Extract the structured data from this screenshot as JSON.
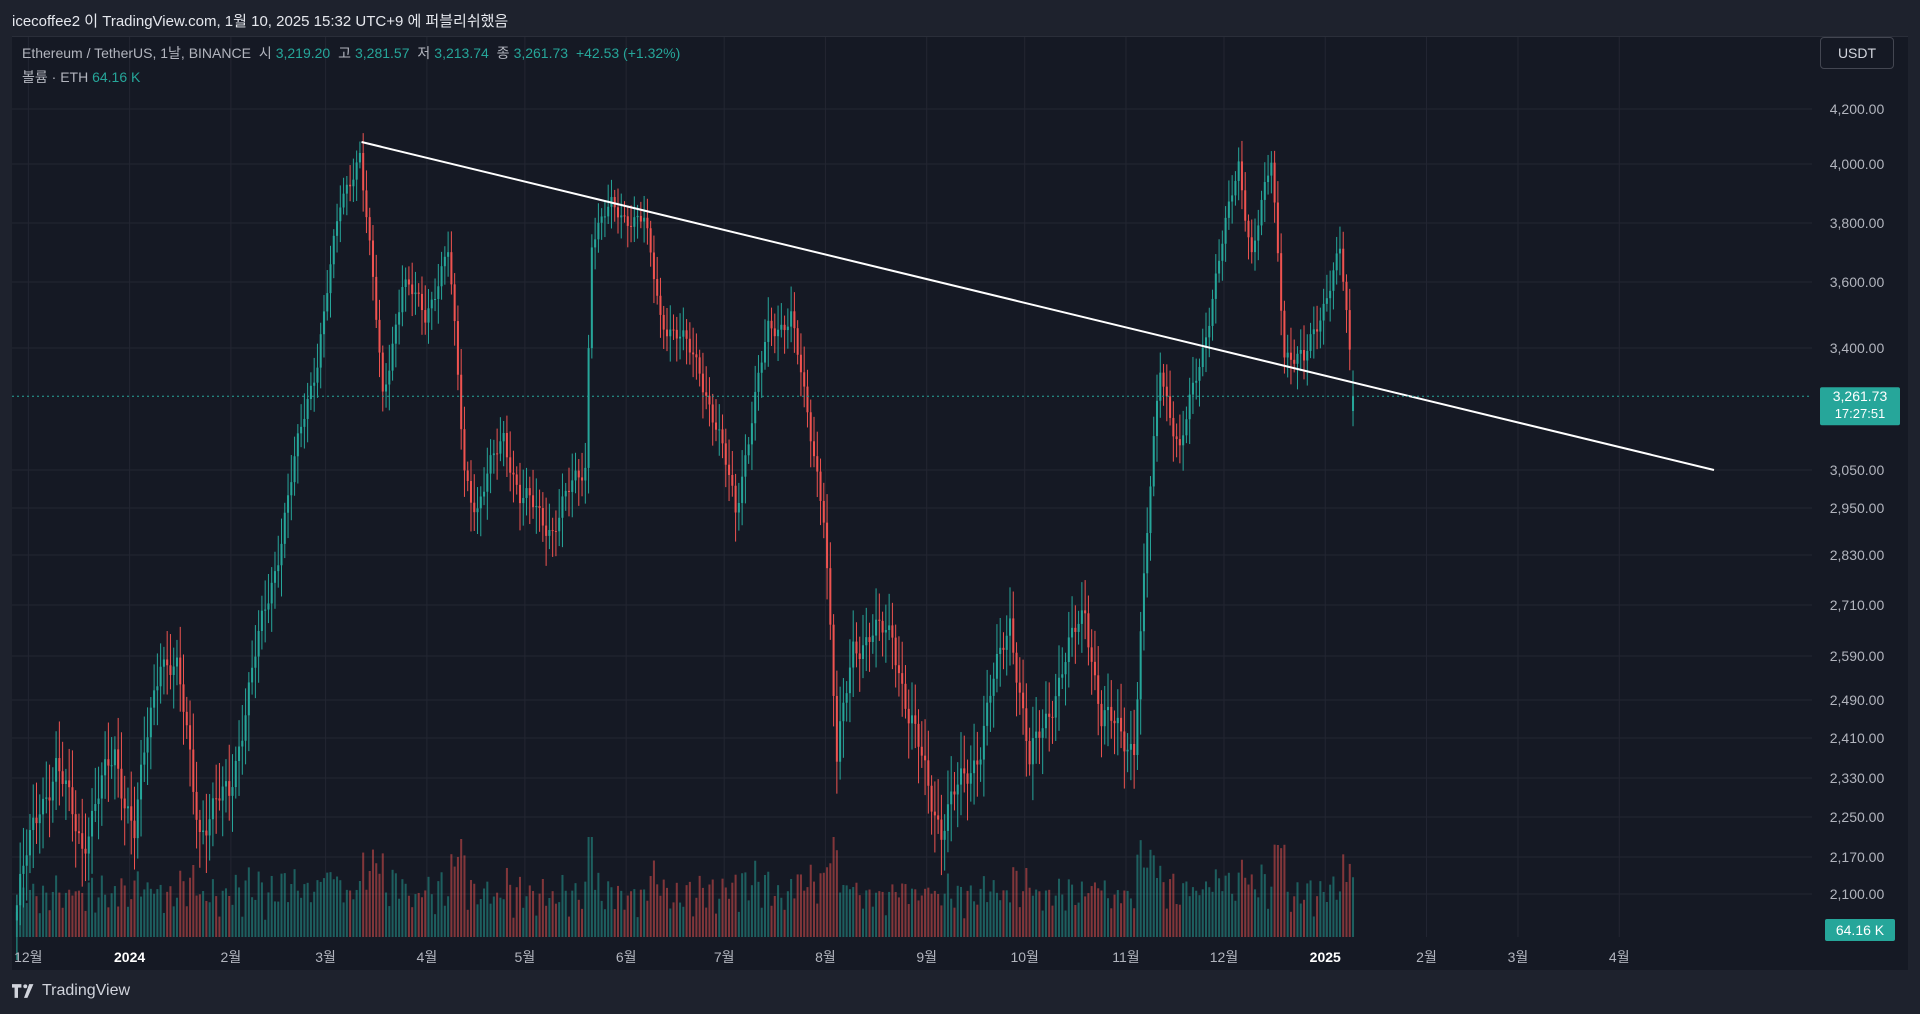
{
  "header": {
    "publish_text": "icecoffee2 이 TradingView.com, 1월 10, 2025 15:32 UTC+9 에 퍼블리쉬했음"
  },
  "legend": {
    "symbol": "Ethereum / TetherUS, 1날, BINANCE",
    "open_label": "시",
    "open": "3,219.20",
    "high_label": "고",
    "high": "3,281.57",
    "low_label": "저",
    "low": "3,213.74",
    "close_label": "종",
    "close": "3,261.73",
    "change": "+42.53 (+1.32%)",
    "volume_label": "볼륨 · ETH",
    "volume": "64.16 K"
  },
  "currency_button": "USDT",
  "price_tag": {
    "price": "3,261.73",
    "countdown": "17:27:51"
  },
  "volume_tag": "64.16 K",
  "footer": {
    "brand": "TradingView"
  },
  "colors": {
    "up": "#26a69a",
    "down": "#ef5350",
    "background": "#151924",
    "trendline": "#ffffff"
  },
  "chart_data": {
    "type": "candlestick",
    "symbol": "ETHUSDT",
    "interval": "1D",
    "y_axis_labels": [
      "4,200.00",
      "4,000.00",
      "3,800.00",
      "3,600.00",
      "3,400.00",
      "3,050.00",
      "2,950.00",
      "2,830.00",
      "2,710.00",
      "2,590.00",
      "2,490.00",
      "2,410.00",
      "2,330.00",
      "2,250.00",
      "2,170.00",
      "2,100.00"
    ],
    "y_axis_values": [
      4200,
      4000,
      3800,
      3600,
      3400,
      3050,
      2950,
      2830,
      2710,
      2590,
      2490,
      2410,
      2330,
      2250,
      2170,
      2100
    ],
    "x_axis_labels": [
      {
        "label": "12월",
        "date": "2023-12-01"
      },
      {
        "label": "2024",
        "date": "2024-01-01",
        "bold": true
      },
      {
        "label": "2월",
        "date": "2024-02-01"
      },
      {
        "label": "3월",
        "date": "2024-03-01"
      },
      {
        "label": "4월",
        "date": "2024-04-01"
      },
      {
        "label": "5월",
        "date": "2024-05-01"
      },
      {
        "label": "6월",
        "date": "2024-06-01"
      },
      {
        "label": "7월",
        "date": "2024-07-01"
      },
      {
        "label": "8월",
        "date": "2024-08-01"
      },
      {
        "label": "9월",
        "date": "2024-09-01"
      },
      {
        "label": "10월",
        "date": "2024-10-01"
      },
      {
        "label": "11월",
        "date": "2024-11-01"
      },
      {
        "label": "12월",
        "date": "2024-12-01"
      },
      {
        "label": "2025",
        "date": "2025-01-01",
        "bold": true
      },
      {
        "label": "2월",
        "date": "2025-02-01"
      },
      {
        "label": "3월",
        "date": "2025-03-01"
      },
      {
        "label": "4월",
        "date": "2025-04-01"
      }
    ],
    "price_path": [
      {
        "date": "2023-11-27",
        "close": 2050
      },
      {
        "date": "2023-12-05",
        "close": 2280
      },
      {
        "date": "2023-12-10",
        "close": 2350
      },
      {
        "date": "2023-12-18",
        "close": 2200
      },
      {
        "date": "2023-12-28",
        "close": 2380
      },
      {
        "date": "2024-01-03",
        "close": 2220
      },
      {
        "date": "2024-01-11",
        "close": 2600
      },
      {
        "date": "2024-01-16",
        "close": 2550
      },
      {
        "date": "2024-01-23",
        "close": 2230
      },
      {
        "date": "2024-02-01",
        "close": 2300
      },
      {
        "date": "2024-02-15",
        "close": 2800
      },
      {
        "date": "2024-02-28",
        "close": 3380
      },
      {
        "date": "2024-03-06",
        "close": 3850
      },
      {
        "date": "2024-03-12",
        "close": 4050
      },
      {
        "date": "2024-03-19",
        "close": 3250
      },
      {
        "date": "2024-03-25",
        "close": 3600
      },
      {
        "date": "2024-04-01",
        "close": 3500
      },
      {
        "date": "2024-04-08",
        "close": 3700
      },
      {
        "date": "2024-04-13",
        "close": 3050
      },
      {
        "date": "2024-04-17",
        "close": 2950
      },
      {
        "date": "2024-04-25",
        "close": 3150
      },
      {
        "date": "2024-04-30",
        "close": 2980
      },
      {
        "date": "2024-05-10",
        "close": 2900
      },
      {
        "date": "2024-05-20",
        "close": 3070
      },
      {
        "date": "2024-05-22",
        "close": 3750
      },
      {
        "date": "2024-05-28",
        "close": 3850
      },
      {
        "date": "2024-06-07",
        "close": 3800
      },
      {
        "date": "2024-06-12",
        "close": 3500
      },
      {
        "date": "2024-06-24",
        "close": 3350
      },
      {
        "date": "2024-07-05",
        "close": 2950
      },
      {
        "date": "2024-07-15",
        "close": 3450
      },
      {
        "date": "2024-07-22",
        "close": 3500
      },
      {
        "date": "2024-07-26",
        "close": 3250
      },
      {
        "date": "2024-08-01",
        "close": 2950
      },
      {
        "date": "2024-08-05",
        "close": 2350
      },
      {
        "date": "2024-08-10",
        "close": 2620
      },
      {
        "date": "2024-08-22",
        "close": 2650
      },
      {
        "date": "2024-08-27",
        "close": 2450
      },
      {
        "date": "2024-09-06",
        "close": 2230
      },
      {
        "date": "2024-09-18",
        "close": 2400
      },
      {
        "date": "2024-09-27",
        "close": 2680
      },
      {
        "date": "2024-10-03",
        "close": 2350
      },
      {
        "date": "2024-10-15",
        "close": 2600
      },
      {
        "date": "2024-10-20",
        "close": 2700
      },
      {
        "date": "2024-10-25",
        "close": 2450
      },
      {
        "date": "2024-11-04",
        "close": 2400
      },
      {
        "date": "2024-11-12",
        "close": 3350
      },
      {
        "date": "2024-11-18",
        "close": 3100
      },
      {
        "date": "2024-11-25",
        "close": 3400
      },
      {
        "date": "2024-12-06",
        "close": 4000
      },
      {
        "date": "2024-12-10",
        "close": 3700
      },
      {
        "date": "2024-12-16",
        "close": 4000
      },
      {
        "date": "2024-12-20",
        "close": 3400
      },
      {
        "date": "2024-12-26",
        "close": 3350
      },
      {
        "date": "2025-01-06",
        "close": 3700
      },
      {
        "date": "2025-01-10",
        "close": 3261.73
      }
    ],
    "last": {
      "open": 3219.2,
      "high": 3281.57,
      "low": 3213.74,
      "close": 3261.73
    },
    "trendline": [
      {
        "date": "2024-03-12",
        "price": 4080
      },
      {
        "date": "2025-04-30",
        "price": 3050
      }
    ]
  }
}
